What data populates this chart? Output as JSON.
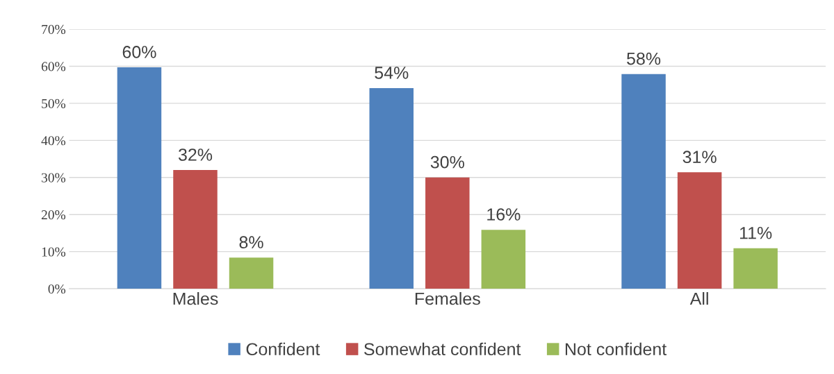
{
  "chart_data": {
    "type": "bar",
    "categories": [
      "Males",
      "Females",
      "All"
    ],
    "series": [
      {
        "name": "Confident",
        "color": "#4f81bd",
        "values": [
          59.7,
          54.1,
          57.9
        ],
        "value_labels": [
          "60%",
          "54%",
          "58%"
        ]
      },
      {
        "name": "Somewhat confident",
        "color": "#c0504d",
        "values": [
          32.0,
          30.0,
          31.4
        ],
        "value_labels": [
          "32%",
          "30%",
          "31%"
        ]
      },
      {
        "name": "Not confident",
        "color": "#9bbb59",
        "values": [
          8.4,
          15.9,
          10.9
        ],
        "value_labels": [
          "8%",
          "16%",
          "11%"
        ]
      }
    ],
    "ylim": [
      0,
      70
    ],
    "yticks": [
      {
        "value": 0,
        "label": "0%"
      },
      {
        "value": 10,
        "label": "10%"
      },
      {
        "value": 20,
        "label": "20%"
      },
      {
        "value": 30,
        "label": "30%"
      },
      {
        "value": 40,
        "label": "40%"
      },
      {
        "value": 50,
        "label": "50%"
      },
      {
        "value": 60,
        "label": "60%"
      },
      {
        "value": 70,
        "label": "70%"
      }
    ],
    "grid": "y",
    "legend": "bottom"
  }
}
